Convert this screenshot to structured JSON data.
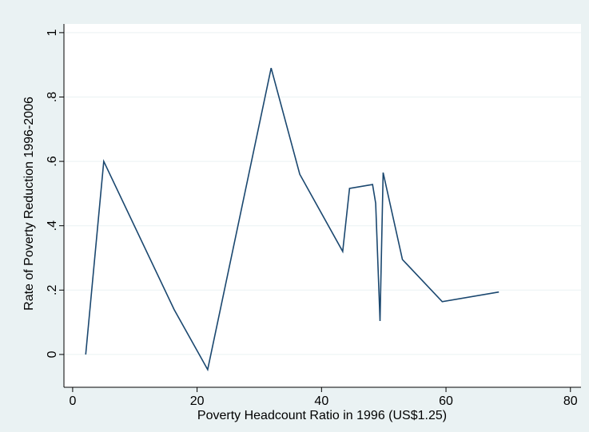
{
  "chart_data": {
    "type": "line",
    "x_label": "Poverty Headcount Ratio in 1996 (US$1.25)",
    "y_label": "Rate of Poverty Reduction 1996-2006",
    "x": [
      2.1,
      5.0,
      16.3,
      21.7,
      31.9,
      36.5,
      43.4,
      44.5,
      48.2,
      48.7,
      49.4,
      49.9,
      53.0,
      59.4,
      68.5
    ],
    "series": [
      {
        "name": "Rate of Poverty Reduction",
        "color": "#1a476f",
        "values": [
          0,
          0.6,
          0.14,
          -0.047,
          0.89,
          0.56,
          0.32,
          0.516,
          0.528,
          0.47,
          0.104,
          0.565,
          0.295,
          0.164,
          0.194
        ]
      }
    ],
    "xlim": [
      -1.4,
      81.7
    ],
    "ylim": [
      -0.102,
      1.027
    ],
    "xticks": [
      0,
      20,
      40,
      60,
      80
    ],
    "yticks": [
      0,
      {
        "value": 0.2,
        "label": ".2"
      },
      {
        "value": 0.4,
        "label": ".4"
      },
      {
        "value": 0.6,
        "label": ".6"
      },
      {
        "value": 0.8,
        "label": ".8"
      },
      1
    ],
    "grid": true
  }
}
